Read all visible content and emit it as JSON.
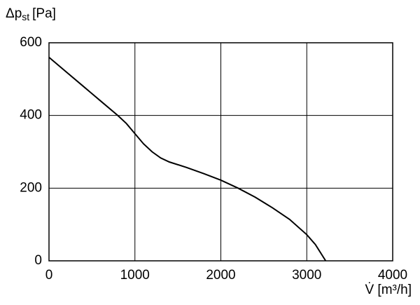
{
  "chart_data": {
    "type": "line",
    "y_label": {
      "main": "Δp",
      "sub": "st",
      "unit": "[Pa]"
    },
    "x_label": "V̇ [m³/h]",
    "x": [
      0,
      200,
      400,
      600,
      800,
      900,
      1000,
      1100,
      1200,
      1300,
      1400,
      1600,
      1800,
      2000,
      2200,
      2400,
      2600,
      2800,
      3000,
      3100,
      3220
    ],
    "values": [
      560,
      520,
      480,
      440,
      400,
      378,
      350,
      322,
      300,
      283,
      272,
      257,
      240,
      222,
      200,
      175,
      146,
      114,
      72,
      45,
      0
    ],
    "color": "#000000",
    "xlim": [
      0,
      4000
    ],
    "xticks": [
      0,
      1000,
      2000,
      3000,
      4000
    ],
    "ylim": [
      0,
      600
    ],
    "yticks": [
      0,
      200,
      400,
      600
    ],
    "grid": true
  }
}
